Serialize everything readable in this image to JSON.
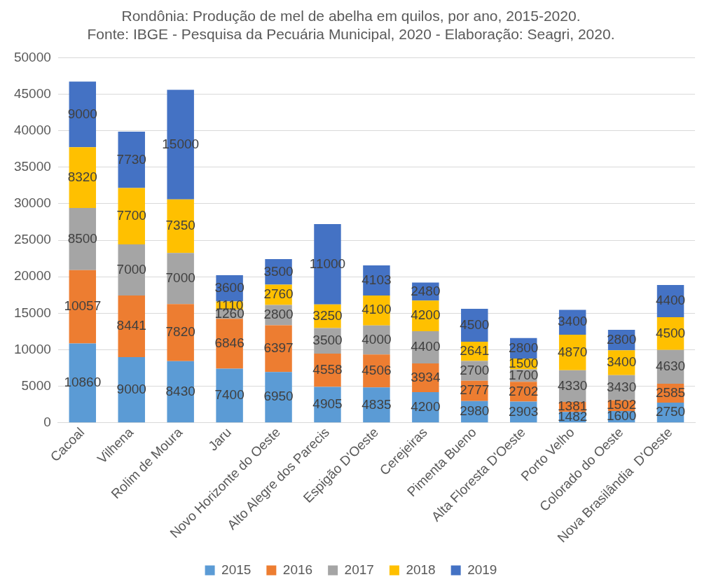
{
  "chart_data": {
    "type": "bar",
    "stacked": true,
    "title": "Rondônia: Produção de mel de abelha em quilos, por ano, 2015-2020.",
    "subtitle": "Fonte: IBGE - Pesquisa da Pecuária Municipal, 2020 - Elaboração: Seagri, 2020.",
    "categories": [
      "Cacoal",
      "Vilhena",
      "Rolim de Moura",
      "Jaru",
      "Novo Horizonte do Oeste",
      "Alto Alegre dos Parecis",
      "Espigão D'Oeste",
      "Cerejeiras",
      "Pimenta Bueno",
      "Alta Floresta D'Oeste",
      "Porto Velho",
      "Colorado do Oeste",
      "Nova Brasilândia  D'Oeste"
    ],
    "series": [
      {
        "name": "2015",
        "color": "#5b9bd5",
        "values": [
          10860,
          9000,
          8430,
          7400,
          6950,
          4905,
          4835,
          4200,
          2980,
          2903,
          1482,
          1600,
          2750
        ]
      },
      {
        "name": "2016",
        "color": "#ed7d31",
        "values": [
          10057,
          8441,
          7820,
          6846,
          6397,
          4558,
          4506,
          3934,
          2777,
          2702,
          1381,
          1502,
          2585
        ]
      },
      {
        "name": "2017",
        "color": "#a5a5a5",
        "values": [
          8500,
          7000,
          7000,
          1260,
          2800,
          3500,
          4000,
          4400,
          2700,
          1700,
          4330,
          3430,
          4630
        ]
      },
      {
        "name": "2018",
        "color": "#ffc000",
        "values": [
          8320,
          7700,
          7350,
          1110,
          2760,
          3250,
          4100,
          4200,
          2641,
          1500,
          4870,
          3400,
          4500
        ]
      },
      {
        "name": "2019",
        "color": "#4472c4",
        "values": [
          9000,
          7730,
          15000,
          3600,
          3500,
          11000,
          4103,
          2480,
          4500,
          2800,
          3400,
          2800,
          4400
        ]
      }
    ],
    "ylim": [
      0,
      50000
    ],
    "yticks": [
      0,
      5000,
      10000,
      15000,
      20000,
      25000,
      30000,
      35000,
      40000,
      45000,
      50000
    ],
    "grid": "y",
    "legend": "bottom",
    "data_labels": true
  }
}
